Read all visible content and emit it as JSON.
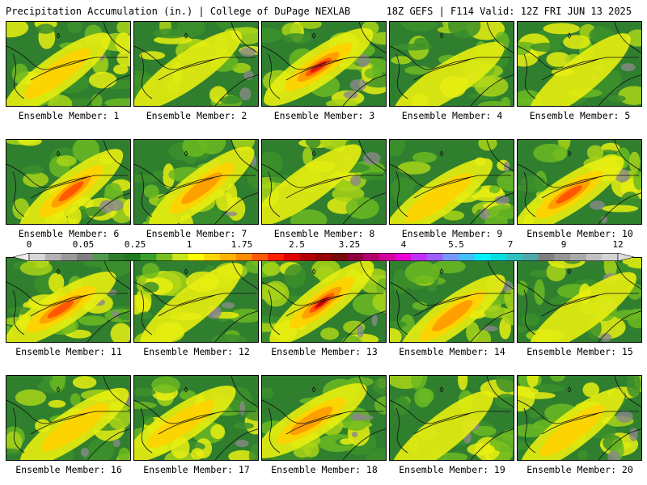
{
  "header": {
    "title_left": "Precipitation Accumulation (in.) | College of DuPage NEXLAB",
    "title_right": "18Z GEFS | F114 Valid: 12Z FRI JUN 13 2025"
  },
  "panels": [
    {
      "label": "Ensemble Member: 1",
      "peak": 1.5
    },
    {
      "label": "Ensemble Member: 2",
      "peak": 1.2
    },
    {
      "label": "Ensemble Member: 3",
      "peak": 2.6
    },
    {
      "label": "Ensemble Member: 4",
      "peak": 1.3
    },
    {
      "label": "Ensemble Member: 5",
      "peak": 1.0
    },
    {
      "label": "Ensemble Member: 6",
      "peak": 2.3
    },
    {
      "label": "Ensemble Member: 7",
      "peak": 2.0
    },
    {
      "label": "Ensemble Member: 8",
      "peak": 1.3
    },
    {
      "label": "Ensemble Member: 9",
      "peak": 1.6
    },
    {
      "label": "Ensemble Member: 10",
      "peak": 2.4
    },
    {
      "label": "Ensemble Member: 11",
      "peak": 2.5
    },
    {
      "label": "Ensemble Member: 12",
      "peak": 1.2
    },
    {
      "label": "Ensemble Member: 13",
      "peak": 3.4
    },
    {
      "label": "Ensemble Member: 14",
      "peak": 2.2
    },
    {
      "label": "Ensemble Member: 15",
      "peak": 1.0
    },
    {
      "label": "Ensemble Member: 16",
      "peak": 1.6
    },
    {
      "label": "Ensemble Member: 17",
      "peak": 1.4
    },
    {
      "label": "Ensemble Member: 18",
      "peak": 1.9
    },
    {
      "label": "Ensemble Member: 19",
      "peak": 1.2
    },
    {
      "label": "Ensemble Member: 20",
      "peak": 1.8
    }
  ],
  "legend": {
    "tick_labels": [
      "0",
      "0.05",
      "0.25",
      "1",
      "1.75",
      "2.5",
      "3.25",
      "4",
      "5.5",
      "7",
      "9",
      "12"
    ],
    "colors": [
      "#d8d8d8",
      "#b4b4b4",
      "#9a9a9a",
      "#808080",
      "#4e9a4e",
      "#2e7d2e",
      "#1f7a1f",
      "#3aa02a",
      "#76c023",
      "#c8e61e",
      "#ffff00",
      "#ffd700",
      "#ffb400",
      "#ff8c00",
      "#ff5a00",
      "#ff2000",
      "#e00000",
      "#b40000",
      "#960000",
      "#780a0a",
      "#900040",
      "#b4006e",
      "#d400a0",
      "#e800d4",
      "#c030ff",
      "#9c60ff",
      "#7898ff",
      "#40c0ff",
      "#00f0ff",
      "#00e0e0",
      "#30c0c0",
      "#50a8a8",
      "#808080",
      "#969696",
      "#aaaaaa",
      "#c0c0c0",
      "#d4d4d4"
    ]
  }
}
